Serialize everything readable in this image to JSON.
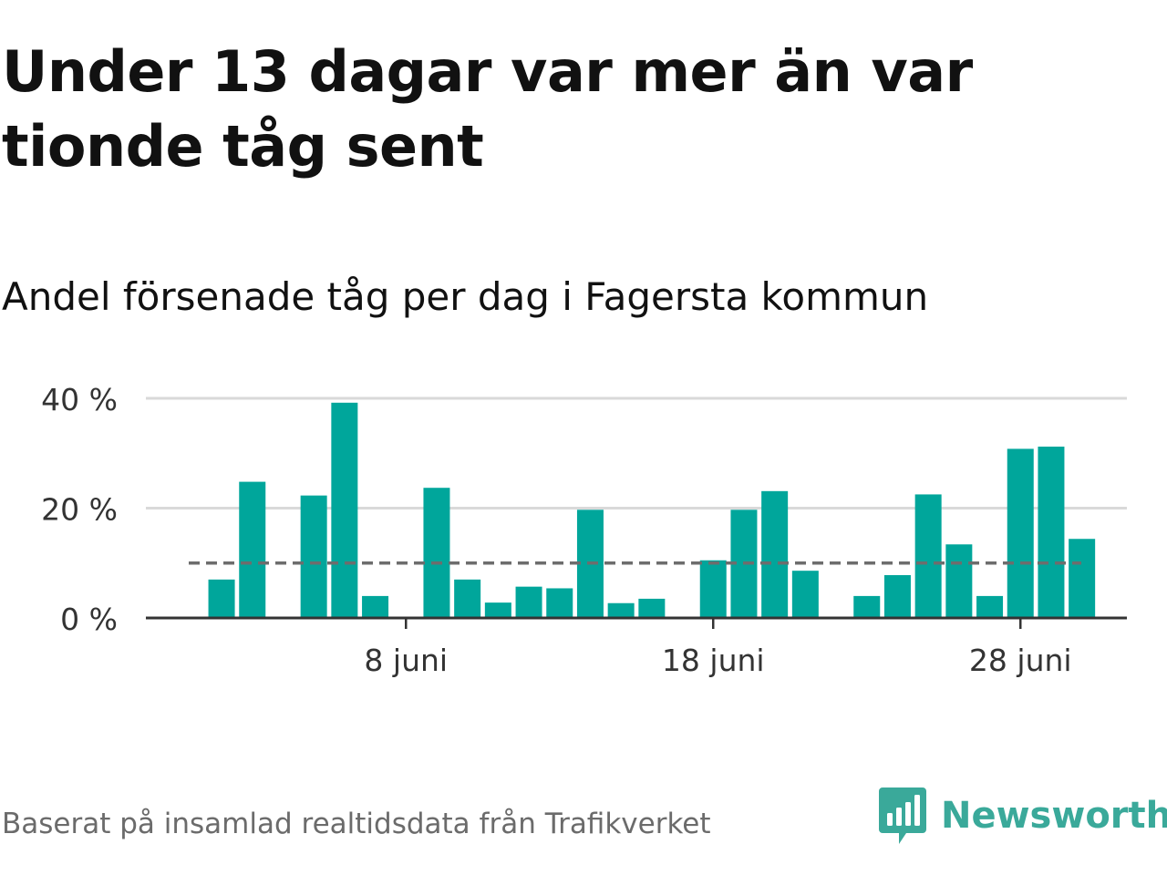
{
  "title": "Under 13 dagar var mer än var tionde tåg sent",
  "subtitle": "Andel försenade tåg per dag i Fagersta kommun",
  "source": "Baserat på insamlad realtidsdata från Trafikverket",
  "brand": {
    "name": "Newsworthy",
    "icon": "newsworthy-logo-icon",
    "color": "#3aa99a"
  },
  "colors": {
    "bar": "#00a69b",
    "reference_line": "#6d6d6d",
    "grid": "#d9d9d9",
    "axis": "#333333"
  },
  "chart_data": {
    "type": "bar",
    "x": [
      "1 juni",
      "2 juni",
      "3 juni",
      "4 juni",
      "5 juni",
      "6 juni",
      "7 juni",
      "8 juni",
      "9 juni",
      "10 juni",
      "11 juni",
      "12 juni",
      "13 juni",
      "14 juni",
      "15 juni",
      "16 juni",
      "17 juni",
      "18 juni",
      "19 juni",
      "20 juni",
      "21 juni",
      "22 juni",
      "23 juni",
      "24 juni",
      "25 juni",
      "26 juni",
      "27 juni",
      "28 juni",
      "29 juni",
      "30 juni"
    ],
    "values": [
      null,
      7,
      24.8,
      null,
      22.3,
      39.2,
      4,
      null,
      23.7,
      7,
      2.8,
      5.7,
      5.4,
      19.7,
      2.7,
      3.5,
      null,
      10.5,
      19.7,
      23.1,
      8.6,
      null,
      4,
      7.8,
      22.5,
      13.4,
      4,
      30.8,
      31.2,
      14.4
    ],
    "reference_line": 10,
    "ylim": [
      0,
      40
    ],
    "yticks": [
      0,
      20,
      40
    ],
    "ytick_labels": [
      "0 %",
      "20 %",
      "40 %"
    ],
    "xtick_positions": [
      "8 juni",
      "18 juni",
      "28 juni"
    ],
    "xtick_labels": [
      "8 juni",
      "18 juni",
      "28 juni"
    ],
    "grid": true,
    "legend": "none"
  }
}
